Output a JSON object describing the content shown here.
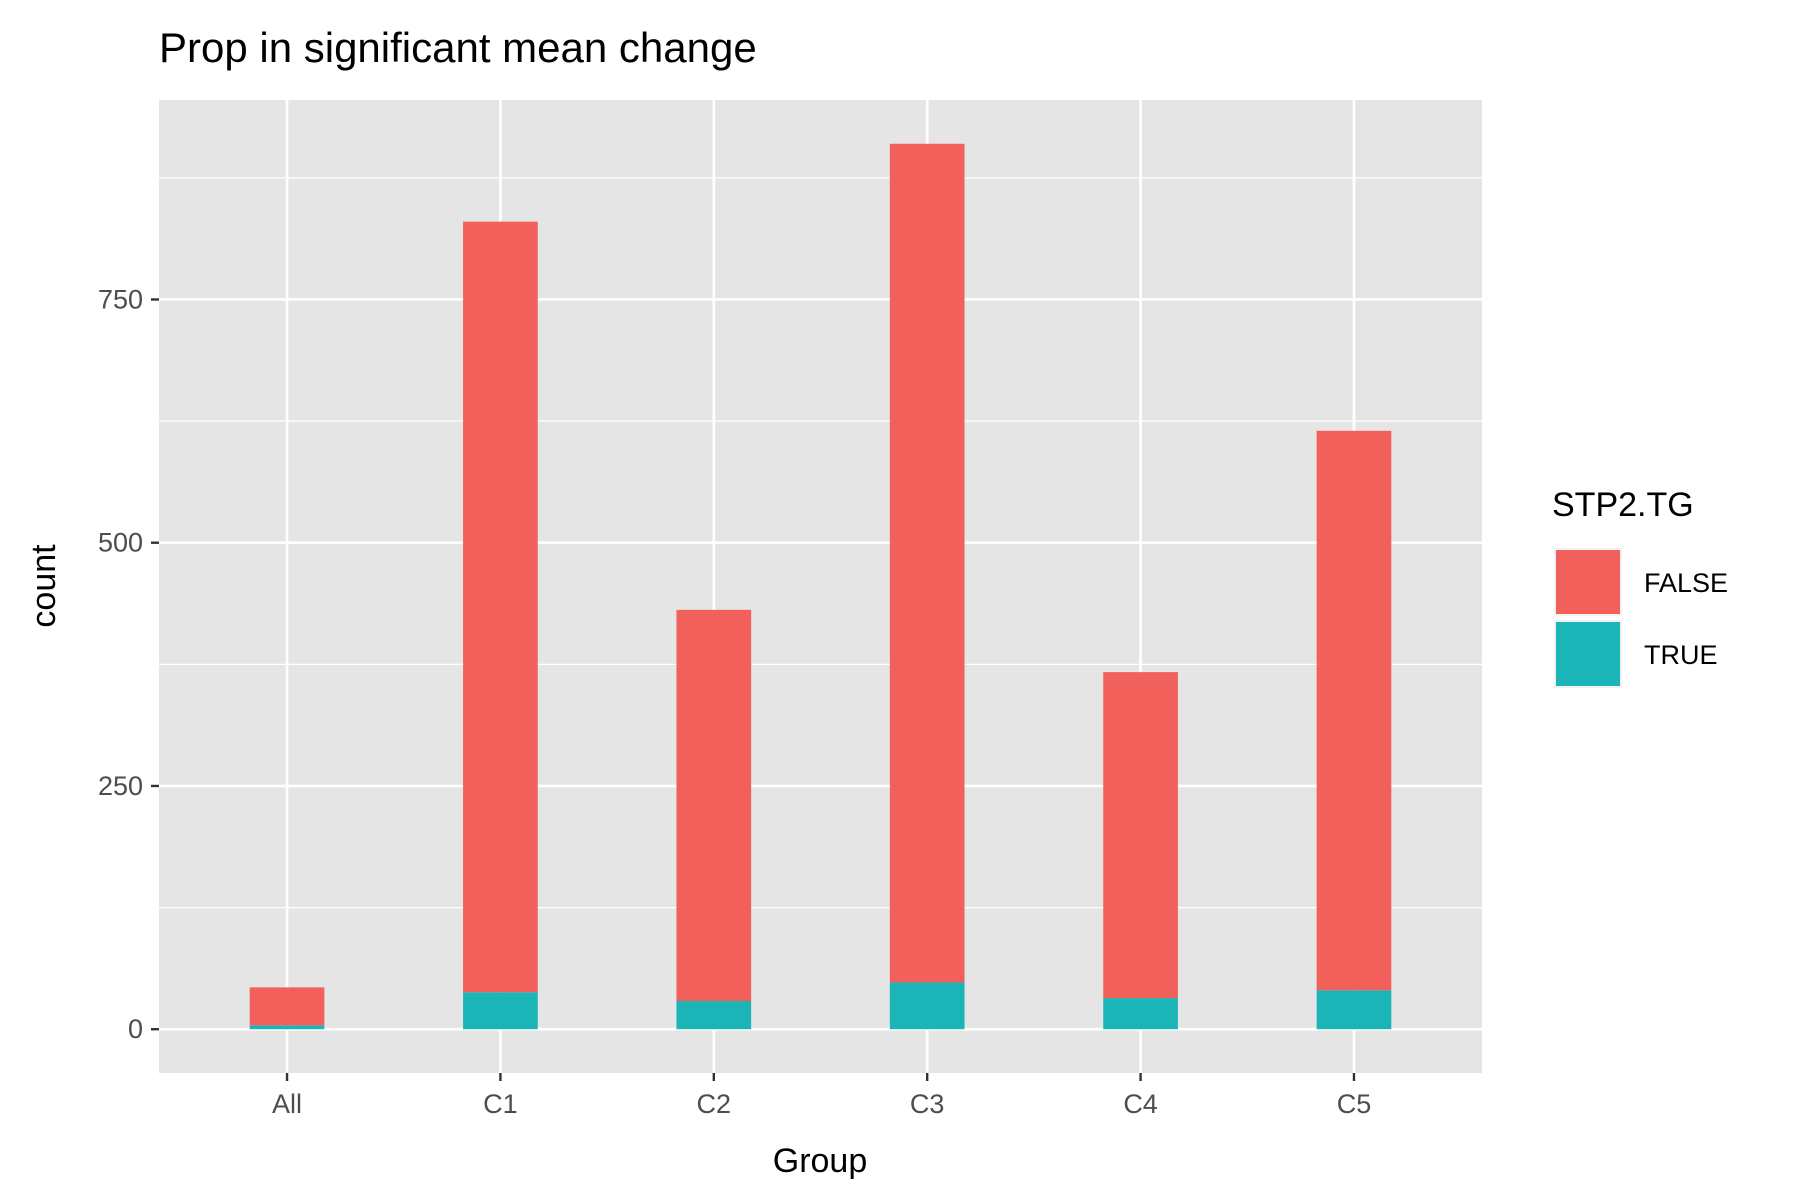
{
  "chart_data": {
    "type": "bar",
    "stacked": true,
    "title": "Prop in significant mean change",
    "xlabel": "Group",
    "ylabel": "count",
    "categories": [
      "All",
      "C1",
      "C2",
      "C3",
      "C4",
      "C5"
    ],
    "ylim": [
      -45,
      955
    ],
    "yticks": [
      0,
      250,
      500,
      750
    ],
    "grid": true,
    "legend": {
      "title": "STP2.TG",
      "position": "right"
    },
    "series": [
      {
        "name": "TRUE",
        "color": "#1BB5B8",
        "values": [
          4,
          38,
          29,
          48,
          32,
          40
        ]
      },
      {
        "name": "FALSE",
        "color": "#F2605B",
        "values": [
          39,
          792,
          402,
          862,
          335,
          575
        ]
      }
    ]
  },
  "colors": {
    "panel_background": "#E5E5E5",
    "gridline": "#FFFFFF",
    "tick_text": "#4D4D4D",
    "tick_mark": "#333333"
  }
}
